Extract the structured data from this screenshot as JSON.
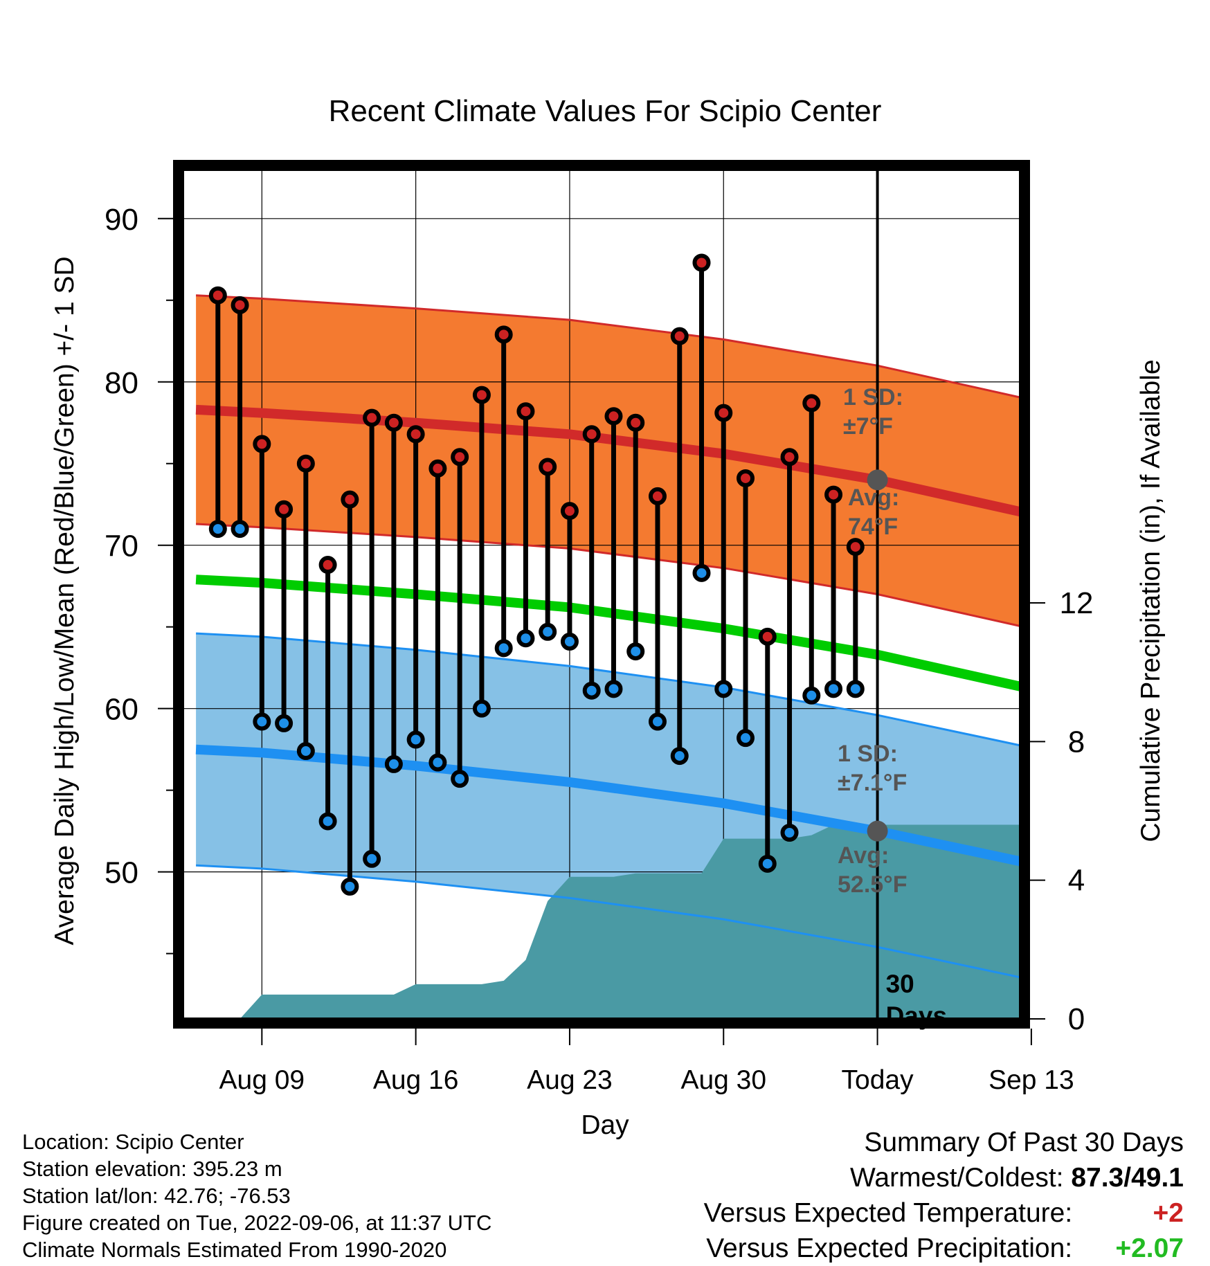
{
  "chart_data": {
    "type": "line",
    "title": "Recent Climate Values For Scipio Center",
    "xlabel": "Day",
    "ylabel": "Average Daily High/Low/Mean (Red/Blue/Green) +/- 1 SD",
    "y2label": "Cumulative Precipitation (in), If Available",
    "xlim": [
      -9.6,
      28.5
    ],
    "ylim": [
      41,
      93
    ],
    "y2lim": [
      0,
      24.5
    ],
    "grid": true,
    "x_ticks": [
      {
        "x": -6,
        "label": "Aug 09"
      },
      {
        "x": 1,
        "label": "Aug 16"
      },
      {
        "x": 8,
        "label": "Aug 23"
      },
      {
        "x": 15,
        "label": "Aug 30"
      },
      {
        "x": 22,
        "label": "Today"
      },
      {
        "x": 29,
        "label": "Sep 13"
      }
    ],
    "y_ticks": [
      50,
      60,
      70,
      80,
      90
    ],
    "y2_ticks": [
      0,
      4,
      8,
      12
    ],
    "today_x": 22,
    "today_label": [
      "30",
      "Days"
    ],
    "high_values": [
      85.3,
      84.7,
      76.2,
      72.2,
      75.0,
      68.8,
      72.8,
      77.8,
      77.5,
      76.8,
      74.7,
      75.4,
      79.2,
      82.9,
      78.2,
      74.8,
      72.1,
      76.8,
      77.9,
      77.5,
      73.0,
      82.8,
      87.3,
      78.1,
      74.1,
      64.4,
      75.4,
      78.7,
      73.1,
      69.9
    ],
    "low_values": [
      71.0,
      71.0,
      59.2,
      59.1,
      57.4,
      53.1,
      49.1,
      50.8,
      56.6,
      58.1,
      56.7,
      55.7,
      60.0,
      63.7,
      64.3,
      64.7,
      64.1,
      61.1,
      61.2,
      63.5,
      59.2,
      57.1,
      68.3,
      61.2,
      58.2,
      50.5,
      52.4,
      60.8,
      61.2,
      61.2
    ],
    "normal_high": {
      "x": [
        -9,
        -6,
        1,
        8,
        15,
        22,
        29,
        32
      ],
      "values": [
        78.3,
        78.1,
        77.5,
        76.8,
        75.6,
        74.0,
        71.9,
        70.6
      ]
    },
    "normal_high_sd": 7,
    "normal_low": {
      "x": [
        -9,
        -6,
        1,
        8,
        15,
        22,
        29,
        32
      ],
      "values": [
        57.5,
        57.3,
        56.5,
        55.5,
        54.2,
        52.5,
        50.5,
        49.4
      ]
    },
    "normal_low_sd": 7.1,
    "normal_mean": {
      "x": [
        -9,
        -6,
        1,
        8,
        15,
        22,
        29,
        32
      ],
      "values": [
        67.9,
        67.7,
        67.0,
        66.2,
        64.9,
        63.3,
        61.2,
        60.0
      ]
    },
    "precip_cumulative": {
      "x": [
        -8,
        -7,
        -6,
        -5,
        -4,
        -3,
        -2,
        -1,
        0,
        1,
        2,
        3,
        4,
        5,
        6,
        7,
        8,
        9,
        10,
        11,
        12,
        13,
        14,
        15,
        16,
        17,
        18,
        19,
        20,
        21,
        28.5
      ],
      "values": [
        0,
        0,
        0.7,
        0.7,
        0.7,
        0.7,
        0.7,
        0.7,
        0.7,
        1.0,
        1.0,
        1.0,
        1.0,
        1.1,
        1.7,
        3.4,
        4.1,
        4.1,
        4.1,
        4.2,
        4.2,
        4.2,
        4.2,
        5.2,
        5.2,
        5.2,
        5.2,
        5.3,
        5.6,
        5.6,
        5.6
      ]
    },
    "annotations": [
      {
        "label": "high_sd",
        "lines": [
          "1 SD:",
          "±7°F"
        ]
      },
      {
        "label": "high_avg",
        "lines": [
          "Avg:",
          "74°F"
        ]
      },
      {
        "label": "low_sd",
        "lines": [
          "1 SD:",
          "±7.1°F"
        ]
      },
      {
        "label": "low_avg",
        "lines": [
          "Avg:",
          "52.5°F"
        ]
      }
    ],
    "colors": {
      "high_band": "#f47a30",
      "high_line": "#d12a2a",
      "low_band": "#86c1e6",
      "low_line": "#1e90f2",
      "mean_line": "#00cc00",
      "precip": "#4a9aa4",
      "high_dot": "#cc2222",
      "low_dot": "#1e8fe8",
      "annotation": "#555555"
    }
  },
  "info": {
    "location": "Location: Scipio Center",
    "elevation": "Station elevation: 395.23 m",
    "latlon": "Station lat/lon: 42.76; -76.53",
    "created": "Figure created on Tue, 2022-09-06, at 11:37 UTC",
    "normals": "Climate Normals Estimated From 1990-2020"
  },
  "summary": {
    "title": "Summary Of Past 30 Days",
    "warmest_coldest_label": "Warmest/Coldest:",
    "warmest_coldest_value": "87.3/49.1",
    "temp_label": "Versus Expected Temperature:",
    "temp_value": "+2",
    "temp_color": "#cc2222",
    "precip_label": "Versus Expected Precipitation:",
    "precip_value": "+2.07",
    "precip_color": "#22bb22"
  }
}
